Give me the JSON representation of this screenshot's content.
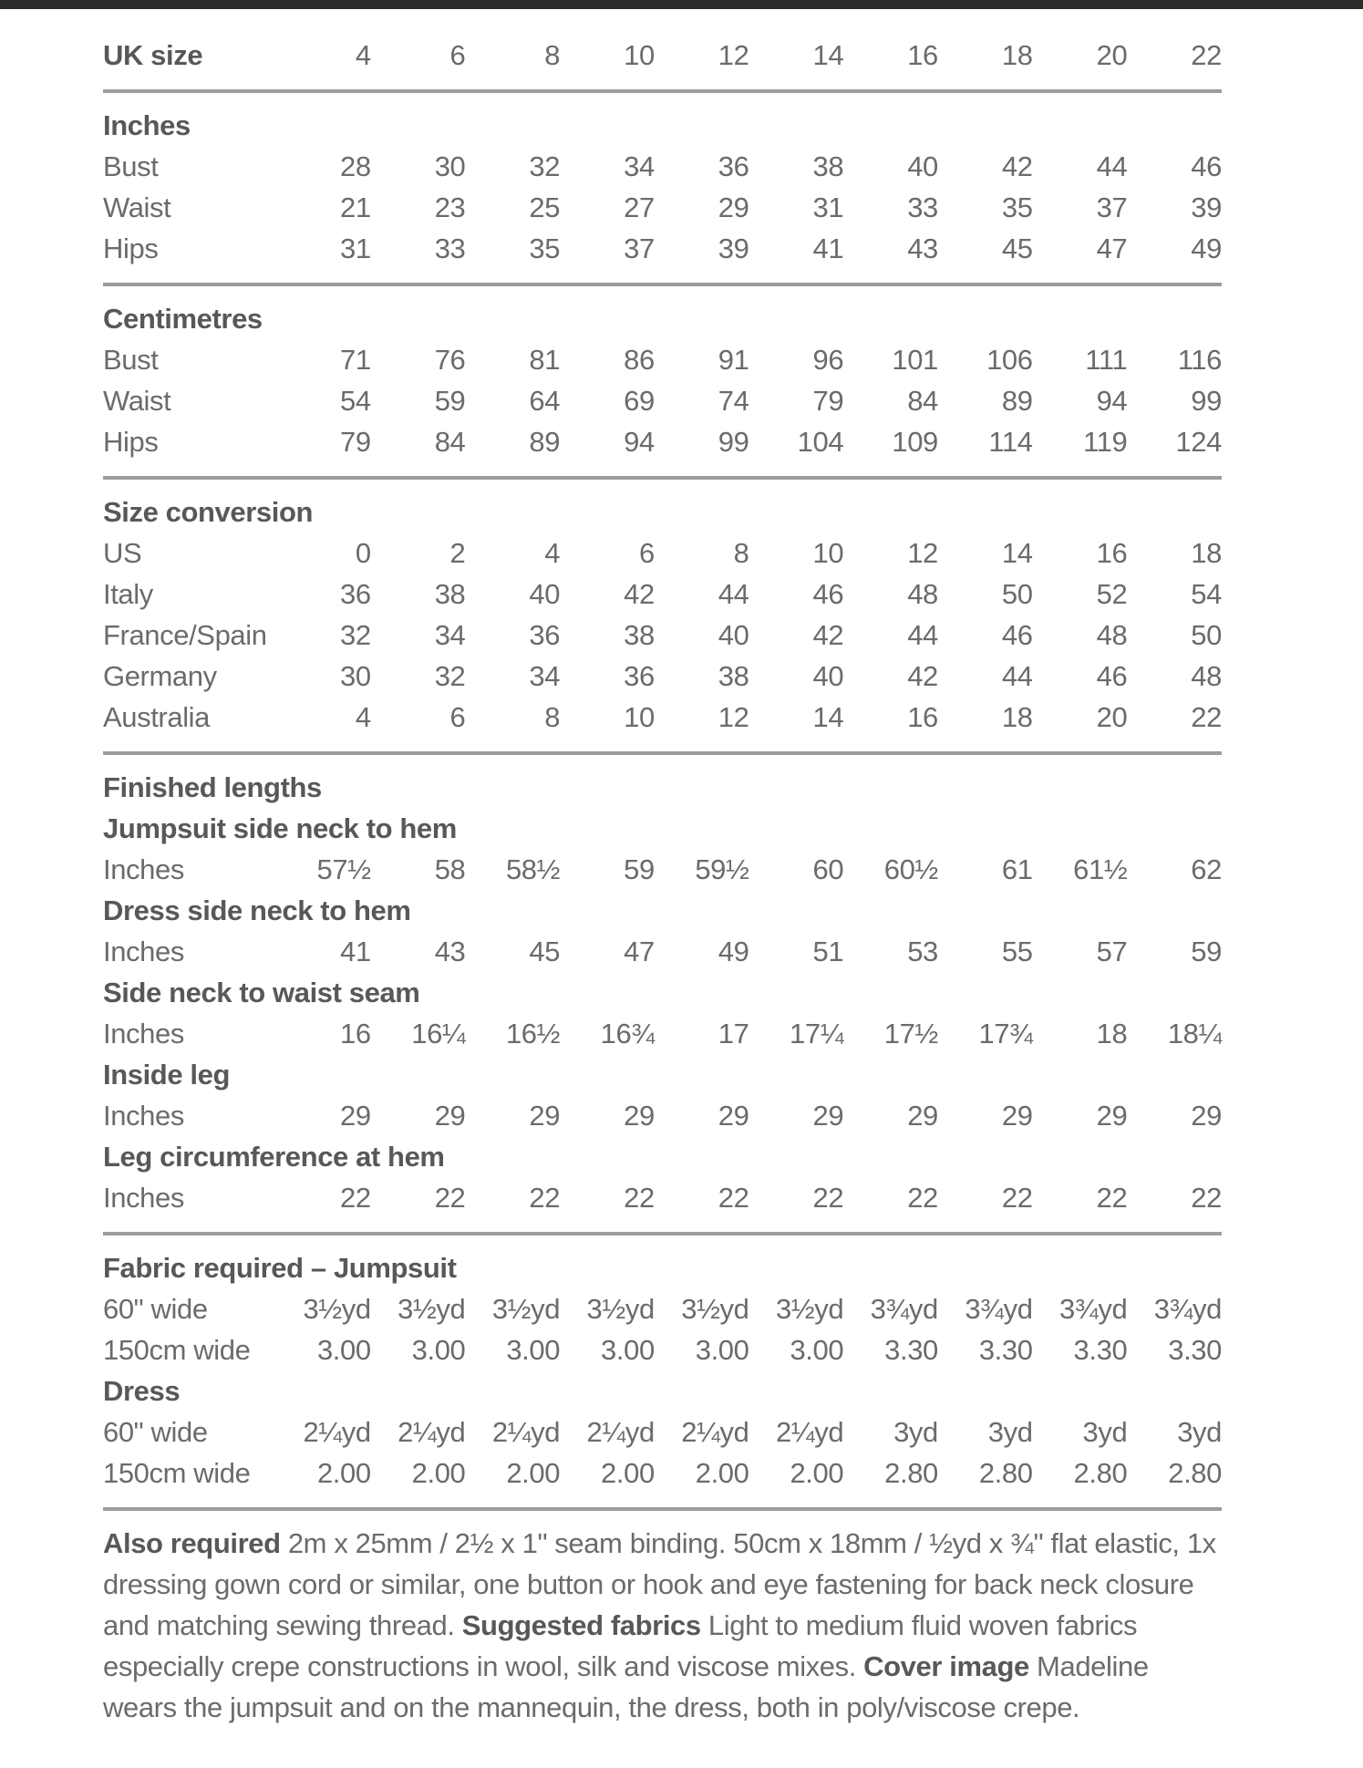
{
  "page": {
    "background": "#ffffff",
    "top_bar_color": "#2d2c2b",
    "text_color": "#6b6b6b",
    "bold_text_color": "#585858",
    "rule_color": "#9d9d9d"
  },
  "size_chart": {
    "header": {
      "label": "UK size",
      "values": [
        "4",
        "6",
        "8",
        "10",
        "12",
        "14",
        "16",
        "18",
        "20",
        "22"
      ]
    },
    "sections": [
      {
        "title": "Inches",
        "rows": [
          {
            "label": "Bust",
            "values": [
              "28",
              "30",
              "32",
              "34",
              "36",
              "38",
              "40",
              "42",
              "44",
              "46"
            ]
          },
          {
            "label": "Waist",
            "values": [
              "21",
              "23",
              "25",
              "27",
              "29",
              "31",
              "33",
              "35",
              "37",
              "39"
            ]
          },
          {
            "label": "Hips",
            "values": [
              "31",
              "33",
              "35",
              "37",
              "39",
              "41",
              "43",
              "45",
              "47",
              "49"
            ]
          }
        ]
      },
      {
        "title": "Centimetres",
        "rows": [
          {
            "label": "Bust",
            "values": [
              "71",
              "76",
              "81",
              "86",
              "91",
              "96",
              "101",
              "106",
              "111",
              "116"
            ]
          },
          {
            "label": "Waist",
            "values": [
              "54",
              "59",
              "64",
              "69",
              "74",
              "79",
              "84",
              "89",
              "94",
              "99"
            ]
          },
          {
            "label": "Hips",
            "values": [
              "79",
              "84",
              "89",
              "94",
              "99",
              "104",
              "109",
              "114",
              "119",
              "124"
            ]
          }
        ]
      },
      {
        "title": "Size conversion",
        "rows": [
          {
            "label": "US",
            "values": [
              "0",
              "2",
              "4",
              "6",
              "8",
              "10",
              "12",
              "14",
              "16",
              "18"
            ]
          },
          {
            "label": "Italy",
            "values": [
              "36",
              "38",
              "40",
              "42",
              "44",
              "46",
              "48",
              "50",
              "52",
              "54"
            ]
          },
          {
            "label": "France/Spain",
            "values": [
              "32",
              "34",
              "36",
              "38",
              "40",
              "42",
              "44",
              "46",
              "48",
              "50"
            ]
          },
          {
            "label": "Germany",
            "values": [
              "30",
              "32",
              "34",
              "36",
              "38",
              "40",
              "42",
              "44",
              "46",
              "48"
            ]
          },
          {
            "label": "Australia",
            "values": [
              "4",
              "6",
              "8",
              "10",
              "12",
              "14",
              "16",
              "18",
              "20",
              "22"
            ]
          }
        ]
      },
      {
        "title": "Finished lengths",
        "rows": [
          {
            "heading": "Jumpsuit side neck to hem"
          },
          {
            "label": "Inches",
            "values": [
              "57½",
              "58",
              "58½",
              "59",
              "59½",
              "60",
              "60½",
              "61",
              "61½",
              "62"
            ]
          },
          {
            "heading": "Dress side neck to hem"
          },
          {
            "label": "Inches",
            "values": [
              "41",
              "43",
              "45",
              "47",
              "49",
              "51",
              "53",
              "55",
              "57",
              "59"
            ]
          },
          {
            "heading": "Side neck to waist seam"
          },
          {
            "label": "Inches",
            "values": [
              "16",
              "16¼",
              "16½",
              "16¾",
              "17",
              "17¼",
              "17½",
              "17¾",
              "18",
              "18¼"
            ]
          },
          {
            "heading": "Inside leg"
          },
          {
            "label": "Inches",
            "values": [
              "29",
              "29",
              "29",
              "29",
              "29",
              "29",
              "29",
              "29",
              "29",
              "29"
            ]
          },
          {
            "heading": "Leg circumference at hem"
          },
          {
            "label": "Inches",
            "values": [
              "22",
              "22",
              "22",
              "22",
              "22",
              "22",
              "22",
              "22",
              "22",
              "22"
            ]
          }
        ]
      },
      {
        "title": "Fabric required – Jumpsuit",
        "rows": [
          {
            "label": "60\" wide",
            "values": [
              "3½yd",
              "3½yd",
              "3½yd",
              "3½yd",
              "3½yd",
              "3½yd",
              "3¾yd",
              "3¾yd",
              "3¾yd",
              "3¾yd"
            ]
          },
          {
            "label": "150cm wide",
            "values": [
              "3.00",
              "3.00",
              "3.00",
              "3.00",
              "3.00",
              "3.00",
              "3.30",
              "3.30",
              "3.30",
              "3.30"
            ]
          },
          {
            "heading": "Dress"
          },
          {
            "label": "60\" wide",
            "values": [
              "2¼yd",
              "2¼yd",
              "2¼yd",
              "2¼yd",
              "2¼yd",
              "2¼yd",
              "3yd",
              "3yd",
              "3yd",
              "3yd"
            ]
          },
          {
            "label": "150cm wide",
            "values": [
              "2.00",
              "2.00",
              "2.00",
              "2.00",
              "2.00",
              "2.00",
              "2.80",
              "2.80",
              "2.80",
              "2.80"
            ]
          }
        ]
      }
    ]
  },
  "notes": {
    "segments": [
      {
        "text": "Also required",
        "bold": true
      },
      {
        "text": " 2m x 25mm / 2½ x 1\" seam binding. 50cm x 18mm / ½yd x ¾\" flat elastic, 1x dressing gown cord or similar, one button or hook and eye fastening for back neck closure and matching sewing thread. ",
        "bold": false
      },
      {
        "text": "Suggested fabrics",
        "bold": true
      },
      {
        "text": " Light to medium fluid woven fabrics especially crepe constructions in wool, silk and viscose mixes. ",
        "bold": false
      },
      {
        "text": "Cover image",
        "bold": true
      },
      {
        "text": " Madeline wears the jumpsuit and on the mannequin, the dress, both in poly/viscose crepe.",
        "bold": false
      }
    ]
  }
}
